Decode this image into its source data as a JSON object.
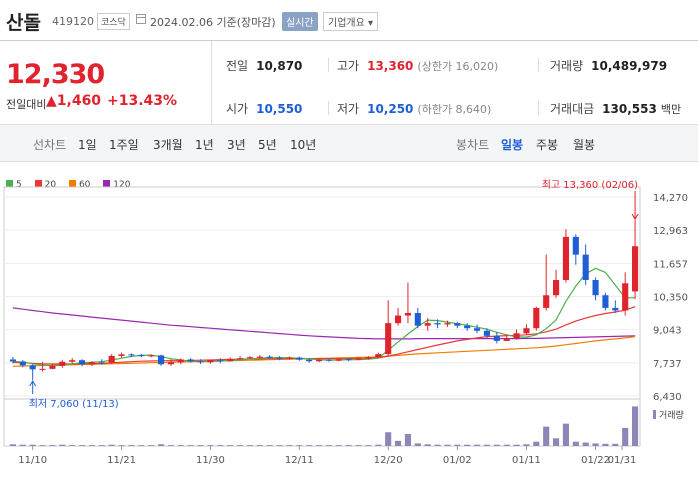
{
  "header": {
    "name": "산돌",
    "code": "419120",
    "market": "코스닥",
    "date_text": "2024.02.06 기준(장마감)",
    "realtime_label": "실시간",
    "company_label": "기업개요 ▾"
  },
  "price": {
    "current": "12,330",
    "change_label": "전일대비",
    "change_value": "▲1,460",
    "change_percent": "+13.43%"
  },
  "stats": {
    "prev_close_label": "전일",
    "prev_close": "10,870",
    "high_label": "고가",
    "high": "13,360",
    "high_sub": "(상한가 16,020)",
    "volume_label": "거래량",
    "volume": "10,489,979",
    "open_label": "시가",
    "open": "10,550",
    "low_label": "저가",
    "low": "10,250",
    "low_sub": "(하한가 8,640)",
    "amount_label": "거래대금",
    "amount": "130,553",
    "amount_unit": "백만"
  },
  "period_tabs": {
    "label": "선차트",
    "items": [
      "1일",
      "1주일",
      "3개월",
      "1년",
      "3년",
      "5년",
      "10년"
    ]
  },
  "candle_tabs": {
    "label": "봉차트",
    "items": [
      "일봉",
      "주봉",
      "월봉"
    ],
    "active": "일봉"
  },
  "colors": {
    "up": "#e0232d",
    "down": "#1f5fd6",
    "ma5": "#4caf50",
    "ma20": "#e53935",
    "ma60": "#f57c00",
    "ma120": "#9c27b0"
  },
  "chart_data": {
    "type": "candlestick",
    "legend": [
      "5",
      "20",
      "60",
      "120"
    ],
    "y_ticks": [
      "14,270",
      "12,963",
      "11,657",
      "10,350",
      "9,043",
      "7,737",
      "6,430"
    ],
    "ylim": [
      6430,
      14270
    ],
    "x_ticks": [
      "11/10",
      "11/21",
      "11/30",
      "12/11",
      "12/20",
      "01/02",
      "01/11",
      "01/22",
      "01/31"
    ],
    "annotations": {
      "high": "최고 13,360 (02/06)",
      "low": "최저 7,060 (11/13)"
    },
    "volume_label": "거래량",
    "candles": [
      [
        7870,
        7790,
        7970,
        7720
      ],
      [
        7790,
        7640,
        7850,
        7560
      ],
      [
        7640,
        7480,
        7680,
        7060
      ],
      [
        7480,
        7500,
        7780,
        7400
      ],
      [
        7500,
        7620,
        7690,
        7480
      ],
      [
        7620,
        7780,
        7860,
        7540
      ],
      [
        7780,
        7840,
        7920,
        7700
      ],
      [
        7840,
        7680,
        7880,
        7600
      ],
      [
        7680,
        7760,
        7800,
        7600
      ],
      [
        7760,
        7740,
        7880,
        7660
      ],
      [
        7740,
        8010,
        8080,
        7700
      ],
      [
        8010,
        8070,
        8140,
        7940
      ],
      [
        8070,
        8040,
        8110,
        7960
      ],
      [
        8040,
        8010,
        8090,
        7950
      ],
      [
        8010,
        8030,
        8070,
        7950
      ],
      [
        8030,
        7680,
        8060,
        7620
      ],
      [
        7680,
        7760,
        7880,
        7620
      ],
      [
        7760,
        7870,
        7910,
        7680
      ],
      [
        7870,
        7800,
        7920,
        7740
      ],
      [
        7800,
        7760,
        7880,
        7690
      ],
      [
        7760,
        7840,
        7860,
        7700
      ],
      [
        7840,
        7800,
        7920,
        7720
      ],
      [
        7800,
        7880,
        7950,
        7780
      ],
      [
        7880,
        7920,
        8000,
        7860
      ],
      [
        7920,
        7960,
        8000,
        7880
      ],
      [
        7960,
        7980,
        8040,
        7920
      ],
      [
        7980,
        7940,
        8040,
        7880
      ],
      [
        7940,
        7900,
        8000,
        7840
      ],
      [
        7900,
        7940,
        7990,
        7860
      ],
      [
        7940,
        7860,
        7980,
        7820
      ],
      [
        7860,
        7800,
        7900,
        7740
      ],
      [
        7800,
        7860,
        7890,
        7760
      ],
      [
        7860,
        7820,
        7900,
        7780
      ],
      [
        7820,
        7880,
        7920,
        7800
      ],
      [
        7880,
        7860,
        7920,
        7800
      ],
      [
        7860,
        7900,
        7960,
        7840
      ],
      [
        7900,
        7960,
        8000,
        7860
      ],
      [
        7960,
        8080,
        8140,
        7920
      ],
      [
        8080,
        9300,
        10200,
        8000
      ],
      [
        9300,
        9600,
        9900,
        9200
      ],
      [
        9600,
        9700,
        10900,
        9300
      ],
      [
        9700,
        9200,
        9900,
        9100
      ],
      [
        9200,
        9300,
        9500,
        9000
      ],
      [
        9300,
        9250,
        9450,
        9100
      ],
      [
        9250,
        9300,
        9400,
        9150
      ],
      [
        9300,
        9200,
        9350,
        9100
      ],
      [
        9200,
        9100,
        9300,
        9000
      ],
      [
        9100,
        9000,
        9250,
        8900
      ],
      [
        9000,
        8800,
        9100,
        8700
      ],
      [
        8800,
        8600,
        8950,
        8500
      ],
      [
        8600,
        8700,
        8850,
        8600
      ],
      [
        8700,
        8900,
        9050,
        8650
      ],
      [
        8900,
        9100,
        9250,
        8850
      ],
      [
        9100,
        9900,
        9950,
        9000
      ],
      [
        9900,
        10400,
        12000,
        9800
      ],
      [
        10400,
        11000,
        11400,
        10300
      ],
      [
        11000,
        12700,
        13000,
        10900
      ],
      [
        12700,
        12000,
        12800,
        11600
      ],
      [
        12000,
        11000,
        12400,
        10800
      ],
      [
        11000,
        10400,
        11100,
        10200
      ],
      [
        10400,
        9900,
        10500,
        9800
      ],
      [
        9900,
        9800,
        10200,
        9700
      ],
      [
        9800,
        10870,
        11300,
        9600
      ],
      [
        10550,
        12330,
        13360,
        10250
      ]
    ],
    "volumes": [
      0.04,
      0.03,
      0.03,
      0.02,
      0.02,
      0.03,
      0.02,
      0.02,
      0.02,
      0.02,
      0.03,
      0.02,
      0.02,
      0.02,
      0.02,
      0.04,
      0.02,
      0.02,
      0.02,
      0.02,
      0.02,
      0.02,
      0.02,
      0.02,
      0.02,
      0.02,
      0.02,
      0.02,
      0.02,
      0.02,
      0.02,
      0.02,
      0.02,
      0.02,
      0.02,
      0.02,
      0.02,
      0.03,
      0.32,
      0.12,
      0.28,
      0.06,
      0.04,
      0.03,
      0.03,
      0.03,
      0.03,
      0.03,
      0.03,
      0.03,
      0.03,
      0.03,
      0.04,
      0.1,
      0.45,
      0.18,
      0.52,
      0.1,
      0.08,
      0.06,
      0.05,
      0.05,
      0.42,
      0.92
    ],
    "ma5": [
      7800,
      7760,
      7700,
      7650,
      7620,
      7640,
      7700,
      7740,
      7760,
      7780,
      7850,
      7920,
      7990,
      8030,
      8040,
      7980,
      7900,
      7850,
      7800,
      7780,
      7790,
      7810,
      7830,
      7850,
      7890,
      7920,
      7940,
      7940,
      7940,
      7920,
      7890,
      7860,
      7840,
      7850,
      7860,
      7860,
      7880,
      7920,
      8240,
      8560,
      8870,
      9170,
      9420,
      9400,
      9340,
      9280,
      9210,
      9140,
      9060,
      8940,
      8840,
      8760,
      8750,
      8840,
      9080,
      9430,
      10160,
      10760,
      11240,
      11460,
      11300,
      10800,
      10300,
      10300
    ],
    "ma20": [
      7750,
      7740,
      7720,
      7700,
      7690,
      7690,
      7690,
      7700,
      7710,
      7720,
      7740,
      7760,
      7780,
      7800,
      7810,
      7820,
      7820,
      7820,
      7830,
      7840,
      7850,
      7860,
      7870,
      7880,
      7890,
      7890,
      7900,
      7900,
      7900,
      7900,
      7900,
      7900,
      7900,
      7900,
      7900,
      7910,
      7920,
      7930,
      8000,
      8080,
      8170,
      8260,
      8350,
      8440,
      8520,
      8600,
      8660,
      8720,
      8770,
      8790,
      8810,
      8820,
      8840,
      8880,
      8960,
      9060,
      9230,
      9380,
      9500,
      9600,
      9680,
      9740,
      9810,
      9950
    ],
    "ma60": [
      7600,
      7610,
      7620,
      7630,
      7640,
      7650,
      7660,
      7670,
      7680,
      7690,
      7700,
      7710,
      7720,
      7730,
      7740,
      7750,
      7760,
      7770,
      7780,
      7790,
      7800,
      7810,
      7820,
      7830,
      7840,
      7850,
      7860,
      7870,
      7880,
      7890,
      7900,
      7910,
      7920,
      7930,
      7940,
      7950,
      7960,
      7970,
      8000,
      8030,
      8060,
      8090,
      8110,
      8130,
      8150,
      8170,
      8190,
      8210,
      8230,
      8250,
      8270,
      8290,
      8310,
      8330,
      8360,
      8400,
      8450,
      8500,
      8550,
      8600,
      8640,
      8680,
      8720,
      8770
    ],
    "ma120": [
      9900,
      9850,
      9800,
      9750,
      9700,
      9660,
      9620,
      9580,
      9540,
      9500,
      9460,
      9420,
      9380,
      9340,
      9300,
      9260,
      9220,
      9190,
      9160,
      9130,
      9100,
      9070,
      9040,
      9010,
      8980,
      8950,
      8920,
      8890,
      8860,
      8830,
      8800,
      8780,
      8760,
      8740,
      8720,
      8700,
      8690,
      8680,
      8680,
      8680,
      8680,
      8690,
      8690,
      8690,
      8690,
      8690,
      8690,
      8690,
      8690,
      8690,
      8690,
      8690,
      8700,
      8700,
      8710,
      8720,
      8730,
      8740,
      8750,
      8760,
      8770,
      8780,
      8790,
      8800
    ]
  }
}
